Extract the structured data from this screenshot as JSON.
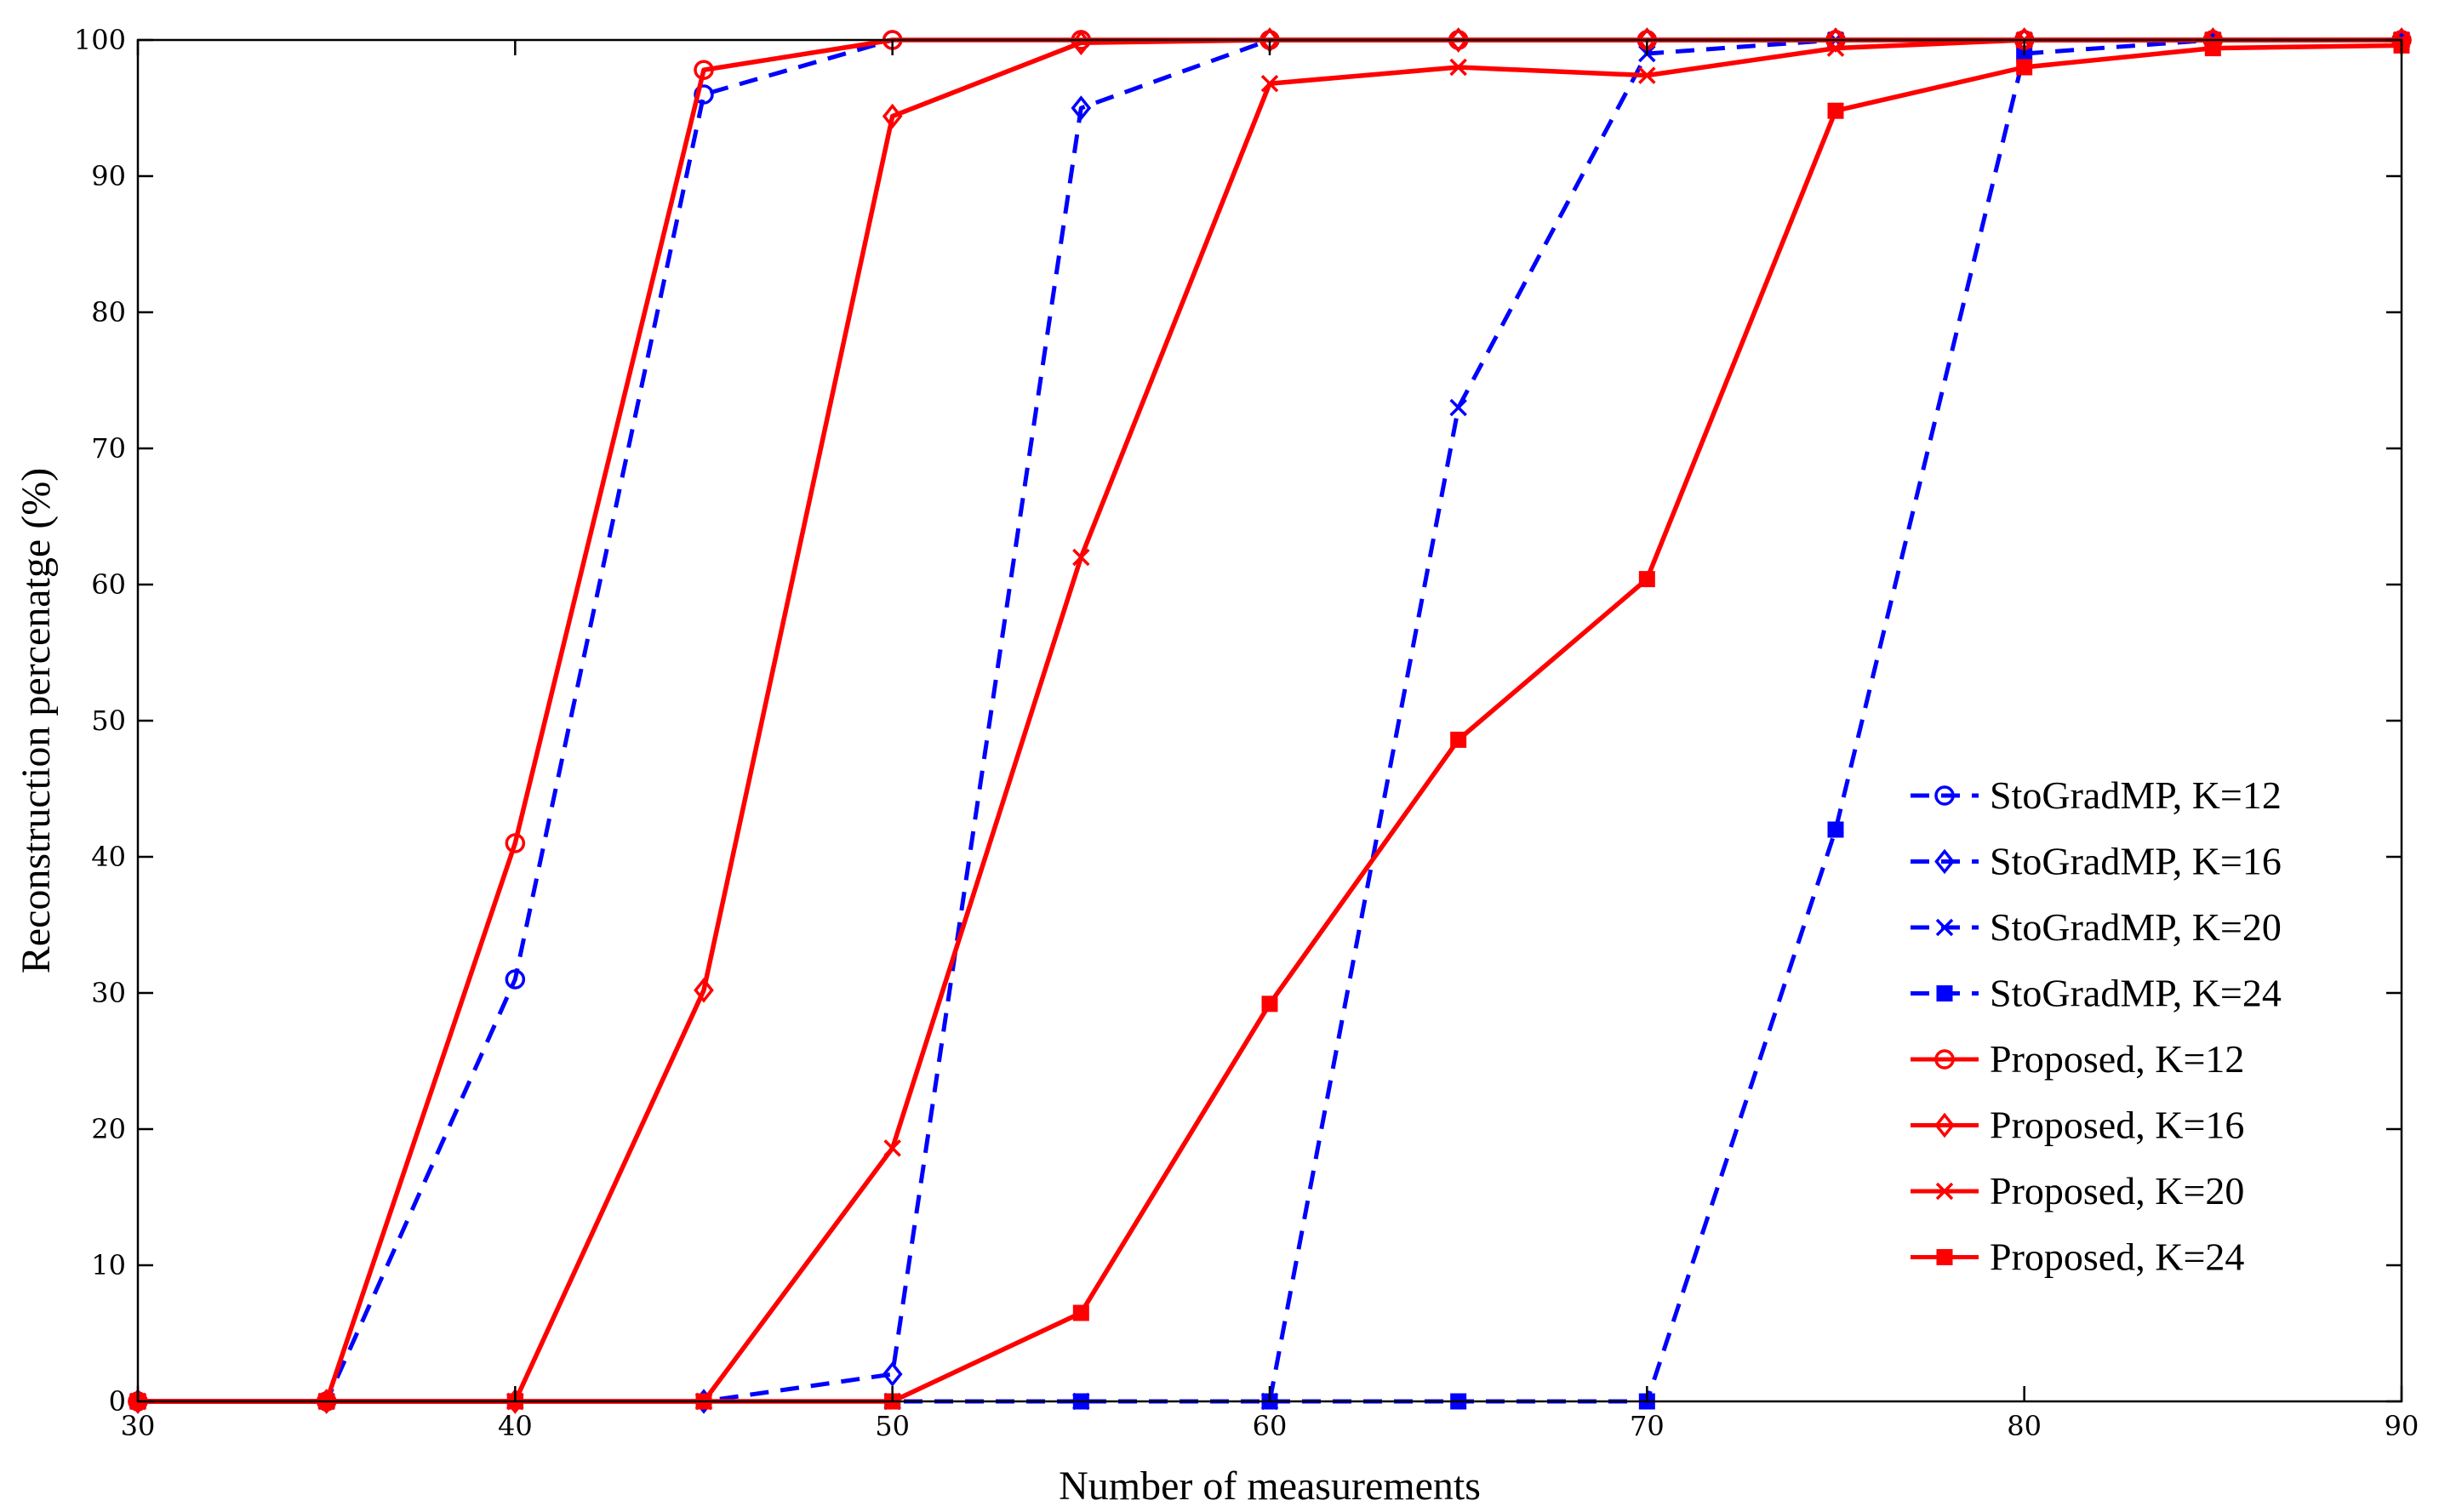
{
  "chart_data": {
    "type": "line",
    "title": "",
    "xlabel": "Number of measurements",
    "ylabel": "Reconstruction percenatge (%)",
    "xlim": [
      30,
      90
    ],
    "ylim": [
      0,
      100
    ],
    "xticks": [
      "30",
      "40",
      "50",
      "60",
      "70",
      "80",
      "90"
    ],
    "yticks": [
      "0",
      "10",
      "20",
      "30",
      "40",
      "50",
      "60",
      "70",
      "80",
      "90",
      "100"
    ],
    "grid": false,
    "legend_position": "right",
    "x": [
      30,
      35,
      40,
      45,
      50,
      55,
      60,
      65,
      70,
      75,
      80,
      85,
      90
    ],
    "series": [
      {
        "name": "StoGradMP, K=12",
        "color": "#0000ff",
        "dash": true,
        "marker": "circle",
        "values": [
          0,
          0,
          31,
          96,
          100,
          100,
          100,
          100,
          100,
          100,
          100,
          100,
          100
        ]
      },
      {
        "name": "StoGradMP, K=16",
        "color": "#0000ff",
        "dash": true,
        "marker": "diamond",
        "values": [
          0,
          0,
          0,
          0,
          2,
          95,
          100,
          100,
          100,
          100,
          100,
          100,
          100
        ]
      },
      {
        "name": "StoGradMP, K=20",
        "color": "#0000ff",
        "dash": true,
        "marker": "x",
        "values": [
          0,
          0,
          0,
          0,
          0,
          0,
          0,
          73,
          99,
          100,
          100,
          100,
          100
        ]
      },
      {
        "name": "StoGradMP, K=24",
        "color": "#0000ff",
        "dash": true,
        "marker": "square",
        "values": [
          0,
          0,
          0,
          0,
          0,
          0,
          0,
          0,
          0,
          42,
          99,
          100,
          100
        ]
      },
      {
        "name": "Proposed, K=12",
        "color": "#ff0000",
        "dash": false,
        "marker": "circle",
        "values": [
          0,
          0,
          41,
          97.8,
          100,
          100,
          100,
          100,
          100,
          100,
          100,
          100,
          100
        ]
      },
      {
        "name": "Proposed, K=16",
        "color": "#ff0000",
        "dash": false,
        "marker": "diamond",
        "values": [
          0,
          0,
          0,
          30.2,
          94.4,
          99.8,
          100,
          100,
          100,
          100,
          100,
          100,
          100
        ]
      },
      {
        "name": "Proposed, K=20",
        "color": "#ff0000",
        "dash": false,
        "marker": "x",
        "values": [
          0,
          0,
          0,
          0,
          18.6,
          62,
          96.8,
          98,
          97.4,
          99.4,
          100,
          100,
          100
        ]
      },
      {
        "name": "Proposed, K=24",
        "color": "#ff0000",
        "dash": false,
        "marker": "square",
        "values": [
          0,
          0,
          0,
          0,
          0,
          6.5,
          29.2,
          48.6,
          60.4,
          94.8,
          98,
          99.4,
          99.6
        ]
      }
    ]
  }
}
